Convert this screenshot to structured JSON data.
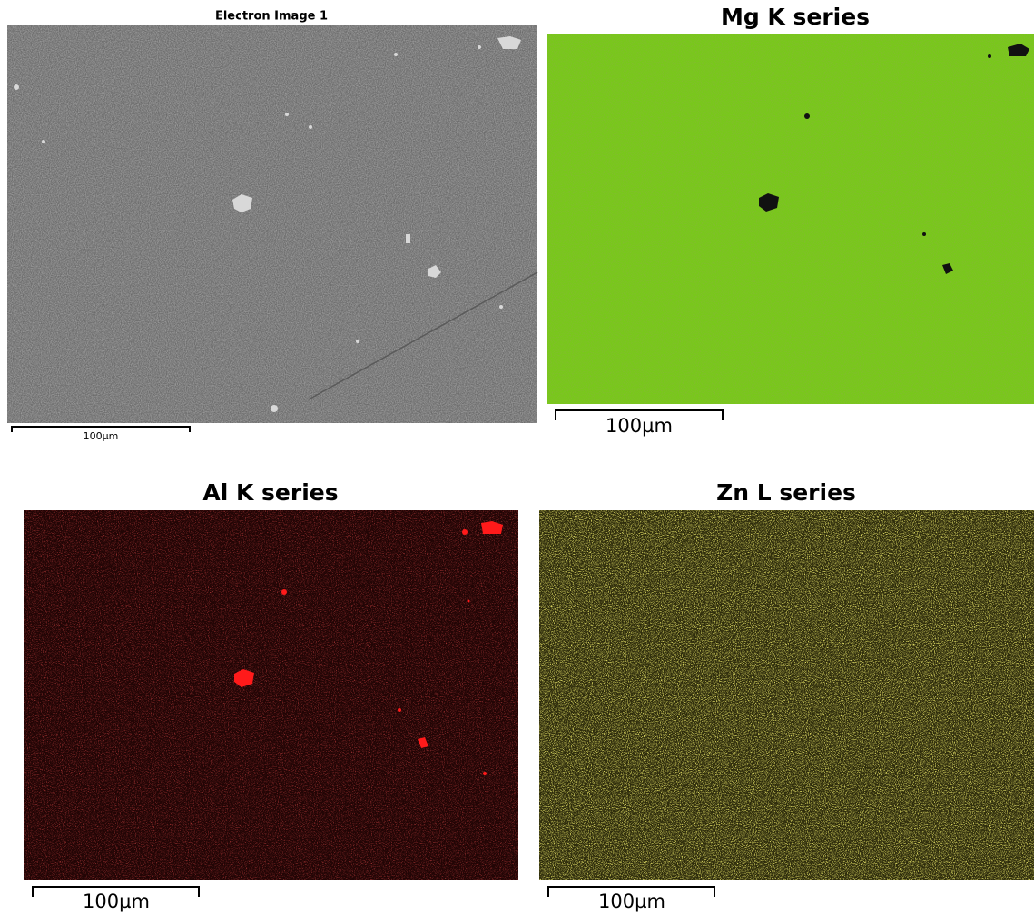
{
  "panels": [
    {
      "title": "Electron Image 1",
      "scale_label": "100µm"
    },
    {
      "title": "Mg K series",
      "scale_label": "100µm"
    },
    {
      "title": "Al K series",
      "scale_label": "100µm"
    },
    {
      "title": "Zn L series",
      "scale_label": "100µm"
    }
  ]
}
